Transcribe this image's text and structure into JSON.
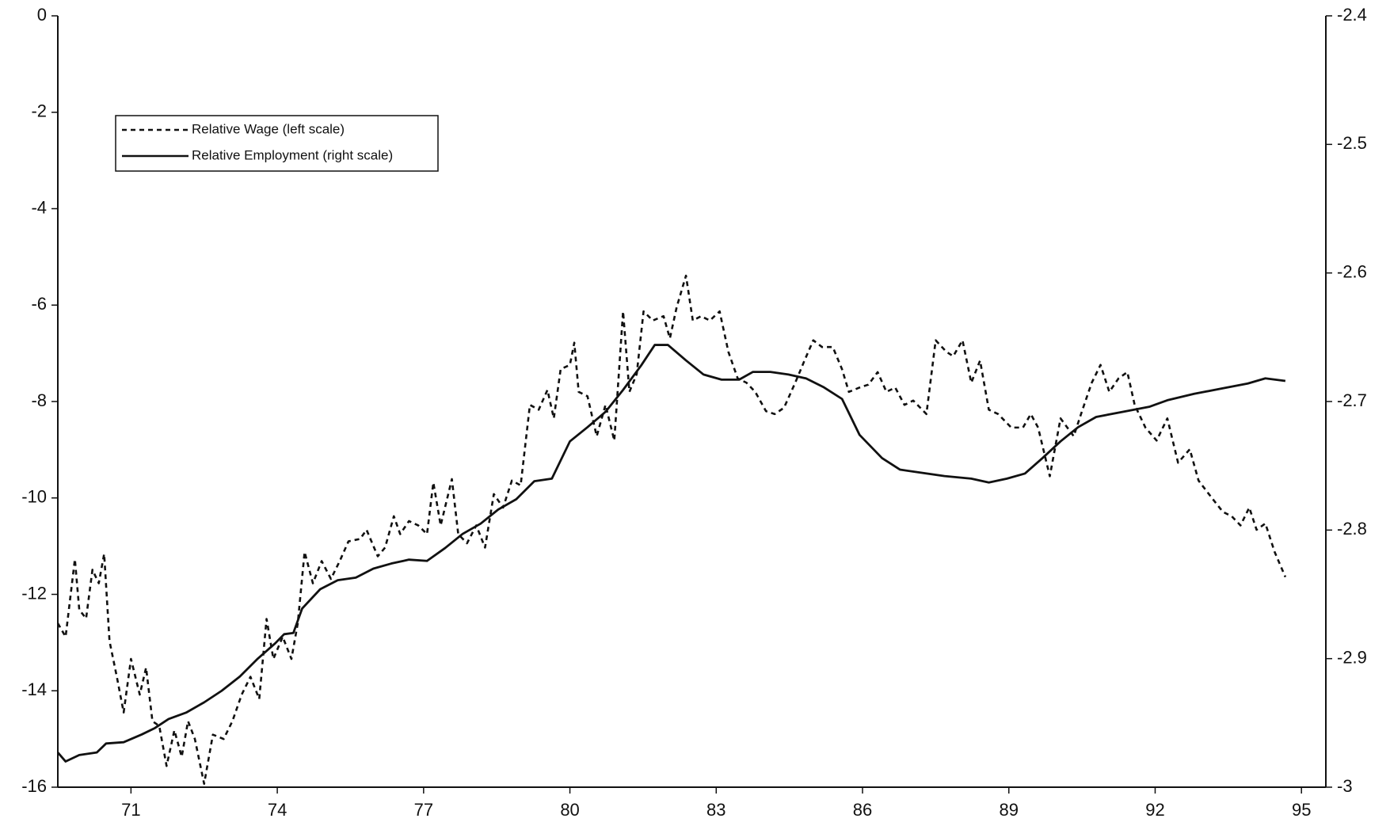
{
  "chart_data": {
    "type": "line",
    "legend_position": "upper left",
    "xlim": [
      69.5,
      95.5
    ],
    "xticks": [
      71,
      74,
      77,
      80,
      83,
      86,
      89,
      92,
      95
    ],
    "ylim": [
      -16,
      0
    ],
    "yticks": [
      0,
      -2,
      -4,
      -6,
      -8,
      -10,
      -12,
      -14,
      -16
    ],
    "y2lim": [
      -3,
      -2.4
    ],
    "y2ticks": [
      -2.4,
      -2.5,
      -2.6,
      -2.7,
      -2.8,
      -2.9,
      -3
    ],
    "series": [
      {
        "name": "Relative Wage (left scale)",
        "color": "#111111",
        "line_style": "dashed",
        "x": [
          69.5,
          69.66,
          69.85,
          69.94,
          70.08,
          70.21,
          70.34,
          70.45,
          70.56,
          70.71,
          70.85,
          71.0,
          71.18,
          71.31,
          71.44,
          71.58,
          71.73,
          71.89,
          72.04,
          72.17,
          72.31,
          72.5,
          72.68,
          72.9,
          73.08,
          73.27,
          73.45,
          73.63,
          73.78,
          73.92,
          74.11,
          74.29,
          74.42,
          74.56,
          74.73,
          74.91,
          75.1,
          75.28,
          75.46,
          75.7,
          75.83,
          76.06,
          76.21,
          76.39,
          76.52,
          76.7,
          76.89,
          77.07,
          77.2,
          77.35,
          77.58,
          77.71,
          77.89,
          78.08,
          78.26,
          78.44,
          78.63,
          78.81,
          78.99,
          79.18,
          79.36,
          79.54,
          79.67,
          79.81,
          80.0,
          80.09,
          80.18,
          80.36,
          80.55,
          80.73,
          80.91,
          81.09,
          81.22,
          81.37,
          81.51,
          81.7,
          81.92,
          82.05,
          82.19,
          82.38,
          82.52,
          82.69,
          82.87,
          83.07,
          83.25,
          83.44,
          83.62,
          83.8,
          84.02,
          84.2,
          84.39,
          84.62,
          84.81,
          84.99,
          85.17,
          85.39,
          85.58,
          85.72,
          85.94,
          86.12,
          86.31,
          86.49,
          86.67,
          86.86,
          87.04,
          87.31,
          87.5,
          87.72,
          87.86,
          88.05,
          88.23,
          88.41,
          88.59,
          88.78,
          89.05,
          89.29,
          89.45,
          89.6,
          89.84,
          90.06,
          90.33,
          90.51,
          90.7,
          90.88,
          91.06,
          91.25,
          91.43,
          91.58,
          91.8,
          92.03,
          92.25,
          92.47,
          92.71,
          92.89,
          93.17,
          93.39,
          93.57,
          93.75,
          93.93,
          94.08,
          94.26,
          94.45,
          94.67
        ],
        "values": [
          -12.6,
          -12.88,
          -11.27,
          -12.32,
          -12.5,
          -11.49,
          -11.77,
          -11.16,
          -12.97,
          -13.71,
          -14.45,
          -13.34,
          -14.08,
          -13.52,
          -14.63,
          -14.73,
          -15.56,
          -14.82,
          -15.37,
          -14.63,
          -15.0,
          -15.93,
          -14.91,
          -15.0,
          -14.63,
          -14.08,
          -13.71,
          -14.17,
          -12.51,
          -13.34,
          -12.88,
          -13.34,
          -12.6,
          -11.12,
          -11.77,
          -11.31,
          -11.68,
          -11.31,
          -10.9,
          -10.85,
          -10.66,
          -11.21,
          -11.03,
          -10.38,
          -10.75,
          -10.48,
          -10.57,
          -10.75,
          -9.68,
          -10.57,
          -9.61,
          -10.75,
          -10.94,
          -10.57,
          -11.03,
          -9.92,
          -10.2,
          -9.64,
          -9.74,
          -8.07,
          -8.17,
          -7.76,
          -8.35,
          -7.33,
          -7.24,
          -6.78,
          -7.8,
          -7.89,
          -8.72,
          -8.07,
          -8.81,
          -6.13,
          -7.8,
          -7.43,
          -6.13,
          -6.32,
          -6.23,
          -6.69,
          -6.04,
          -5.39,
          -6.32,
          -6.23,
          -6.32,
          -6.13,
          -6.97,
          -7.52,
          -7.61,
          -7.8,
          -8.2,
          -8.26,
          -8.13,
          -7.61,
          -7.15,
          -6.73,
          -6.87,
          -6.87,
          -7.33,
          -7.8,
          -7.71,
          -7.65,
          -7.39,
          -7.8,
          -7.71,
          -8.07,
          -7.98,
          -8.26,
          -6.73,
          -6.97,
          -7.06,
          -6.73,
          -7.61,
          -7.15,
          -8.17,
          -8.26,
          -8.54,
          -8.54,
          -8.26,
          -8.54,
          -9.55,
          -8.35,
          -8.72,
          -8.17,
          -7.61,
          -7.24,
          -7.8,
          -7.52,
          -7.39,
          -8.07,
          -8.54,
          -8.81,
          -8.35,
          -9.27,
          -8.99,
          -9.64,
          -10.01,
          -10.29,
          -10.38,
          -10.57,
          -10.2,
          -10.66,
          -10.53,
          -11.12,
          -11.64
        ]
      },
      {
        "name": "Relative Employment (right scale)",
        "color": "#111111",
        "line_style": "solid",
        "axis": "y2",
        "x": [
          69.5,
          69.66,
          69.94,
          70.3,
          70.49,
          70.85,
          71.22,
          71.49,
          71.77,
          72.13,
          72.5,
          72.86,
          73.23,
          73.6,
          73.96,
          74.14,
          74.33,
          74.51,
          74.88,
          75.24,
          75.61,
          75.97,
          76.34,
          76.7,
          77.07,
          77.44,
          77.8,
          78.17,
          78.53,
          78.9,
          79.27,
          79.63,
          80.0,
          80.36,
          80.73,
          81.09,
          81.46,
          81.74,
          82.01,
          82.38,
          82.74,
          83.11,
          83.47,
          83.75,
          84.11,
          84.48,
          84.84,
          85.21,
          85.58,
          85.94,
          86.4,
          86.77,
          87.13,
          87.68,
          88.23,
          88.59,
          88.96,
          89.33,
          89.69,
          90.06,
          90.42,
          90.79,
          91.34,
          91.89,
          92.25,
          92.8,
          93.35,
          93.9,
          94.26,
          94.67
        ],
        "values": [
          -2.973,
          -2.98,
          -2.975,
          -2.973,
          -2.966,
          -2.965,
          -2.959,
          -2.954,
          -2.947,
          -2.942,
          -2.934,
          -2.925,
          -2.914,
          -2.9,
          -2.888,
          -2.881,
          -2.88,
          -2.861,
          -2.846,
          -2.839,
          -2.837,
          -2.83,
          -2.826,
          -2.823,
          -2.824,
          -2.814,
          -2.803,
          -2.795,
          -2.784,
          -2.776,
          -2.762,
          -2.76,
          -2.731,
          -2.72,
          -2.708,
          -2.691,
          -2.672,
          -2.656,
          -2.656,
          -2.668,
          -2.679,
          -2.683,
          -2.683,
          -2.677,
          -2.677,
          -2.679,
          -2.682,
          -2.689,
          -2.698,
          -2.726,
          -2.744,
          -2.753,
          -2.755,
          -2.758,
          -2.76,
          -2.763,
          -2.76,
          -2.756,
          -2.744,
          -2.731,
          -2.72,
          -2.712,
          -2.708,
          -2.704,
          -2.699,
          -2.694,
          -2.69,
          -2.686,
          -2.682,
          -2.684
        ]
      }
    ]
  }
}
